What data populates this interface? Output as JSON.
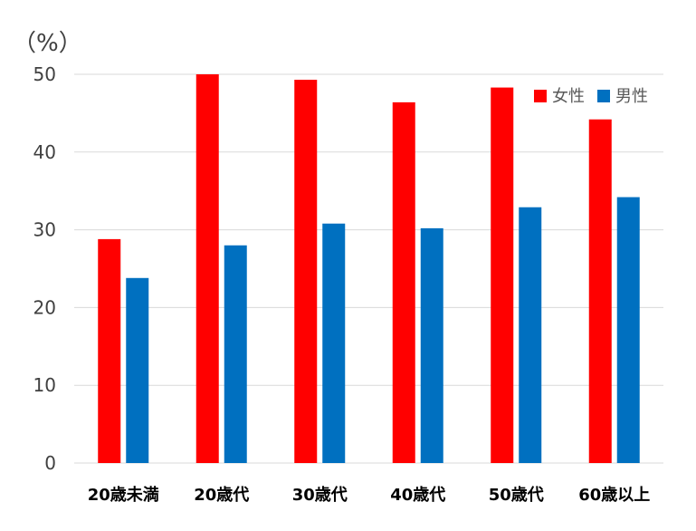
{
  "chart_data": {
    "type": "bar",
    "title": "",
    "ylabel": "（%）",
    "xlabel": "",
    "ylim": [
      0,
      50
    ],
    "yticks": [
      0,
      10,
      20,
      30,
      40,
      50
    ],
    "grid": true,
    "legend_position": "top-right",
    "categories": [
      "20歳未満",
      "20歳代",
      "30歳代",
      "40歳代",
      "50歳代",
      "60歳以上"
    ],
    "series": [
      {
        "name": "女性",
        "color": "#ff0000",
        "values": [
          28.8,
          50.0,
          49.3,
          46.4,
          48.3,
          44.2
        ]
      },
      {
        "name": "男性",
        "color": "#0070c0",
        "values": [
          23.8,
          28.0,
          30.8,
          30.2,
          32.9,
          34.2
        ]
      }
    ]
  }
}
